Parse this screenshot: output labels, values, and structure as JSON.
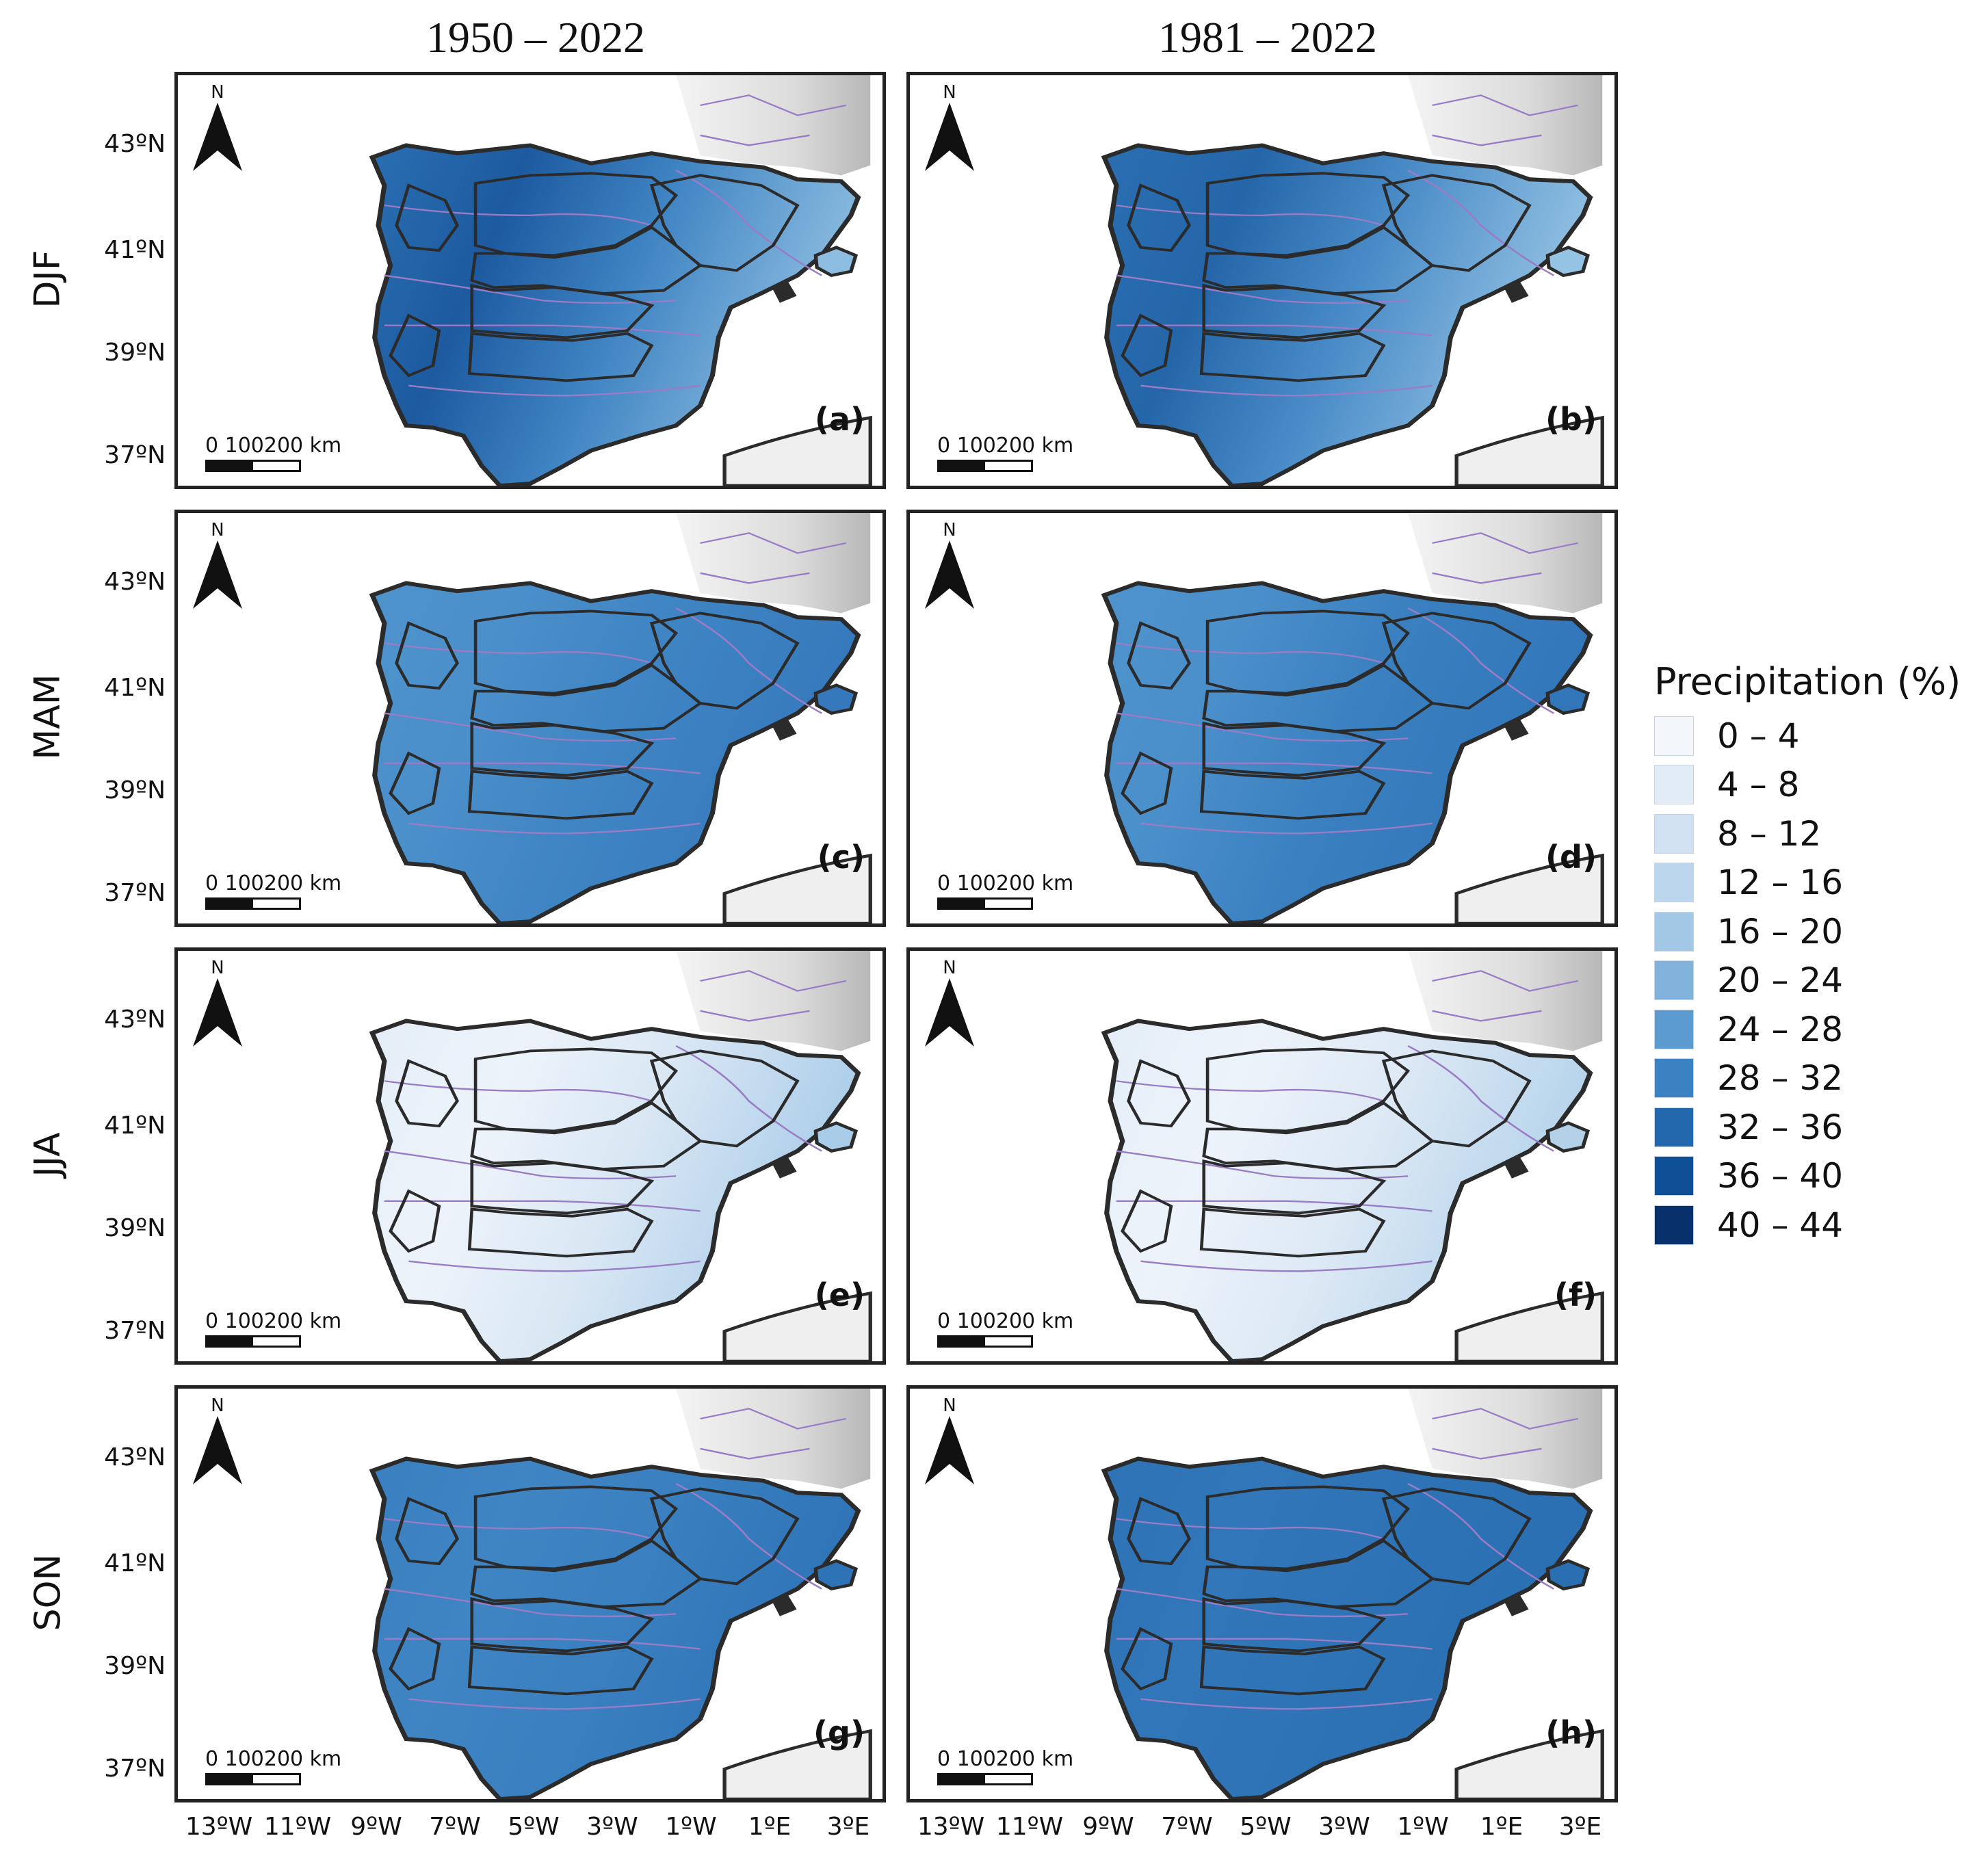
{
  "columns": [
    "1950 – 2022",
    "1981 – 2022"
  ],
  "rows": [
    "DJF",
    "MAM",
    "JJA",
    "SON"
  ],
  "latitude_labels": [
    "43ºN",
    "41ºN",
    "39ºN",
    "37ºN"
  ],
  "longitude_labels": [
    "13ºW",
    "11ºW",
    "9ºW",
    "7ºW",
    "5ºW",
    "3ºW",
    "1ºW",
    "1ºE",
    "3ºE"
  ],
  "north_arrow": {
    "letter": "N",
    "icon": "north-arrow-icon"
  },
  "scale_bar": {
    "label": "0  100200 km"
  },
  "panels": [
    {
      "letter": "(a)",
      "season": "DJF",
      "period": "1950 – 2022",
      "west": "#2a6fb2",
      "southwest": "#1d5aa0",
      "center": "#3f84c3",
      "east": "#8dbde0"
    },
    {
      "letter": "(b)",
      "season": "DJF",
      "period": "1981 – 2022",
      "west": "#2a6fb2",
      "southwest": "#2566a9",
      "center": "#4a8cc8",
      "east": "#95c3e3"
    },
    {
      "letter": "(c)",
      "season": "MAM",
      "period": "1950 – 2022",
      "west": "#4e93cc",
      "southwest": "#4a8fca",
      "center": "#3f84c3",
      "east": "#3579bc"
    },
    {
      "letter": "(d)",
      "season": "MAM",
      "period": "1981 – 2022",
      "west": "#4e93cc",
      "southwest": "#4a8fca",
      "center": "#3a80c0",
      "east": "#3176b9"
    },
    {
      "letter": "(e)",
      "season": "JJA",
      "period": "1950 – 2022",
      "west": "#e4eef8",
      "southwest": "#edf3fa",
      "center": "#d9e7f4",
      "east": "#a9cce8"
    },
    {
      "letter": "(f)",
      "season": "JJA",
      "period": "1981 – 2022",
      "west": "#e4eef8",
      "southwest": "#edf3fa",
      "center": "#dde9f5",
      "east": "#b3d2ea"
    },
    {
      "letter": "(g)",
      "season": "SON",
      "period": "1950 – 2022",
      "west": "#3a80c0",
      "southwest": "#3f84c3",
      "center": "#3a80c0",
      "east": "#2e73b6"
    },
    {
      "letter": "(h)",
      "season": "SON",
      "period": "1981 – 2022",
      "west": "#2e73b6",
      "southwest": "#3176b9",
      "center": "#2e73b6",
      "east": "#2a6fb2"
    }
  ],
  "legend": {
    "title": "Precipitation (%)",
    "items": [
      {
        "label": "0 – 4",
        "color": "#f3f7fc"
      },
      {
        "label": "4 – 8",
        "color": "#e2ecf7"
      },
      {
        "label": "8 – 12",
        "color": "#d1e1f2"
      },
      {
        "label": "12 – 16",
        "color": "#bcd6ee"
      },
      {
        "label": "16 – 20",
        "color": "#a3c8e6"
      },
      {
        "label": "20 – 24",
        "color": "#80b2dc"
      },
      {
        "label": "24 – 28",
        "color": "#5c9bd0"
      },
      {
        "label": "28 – 32",
        "color": "#3a82c2"
      },
      {
        "label": "32 – 36",
        "color": "#2368ac"
      },
      {
        "label": "36 – 40",
        "color": "#0f4f96"
      },
      {
        "label": "40 – 44",
        "color": "#08306b"
      }
    ]
  }
}
